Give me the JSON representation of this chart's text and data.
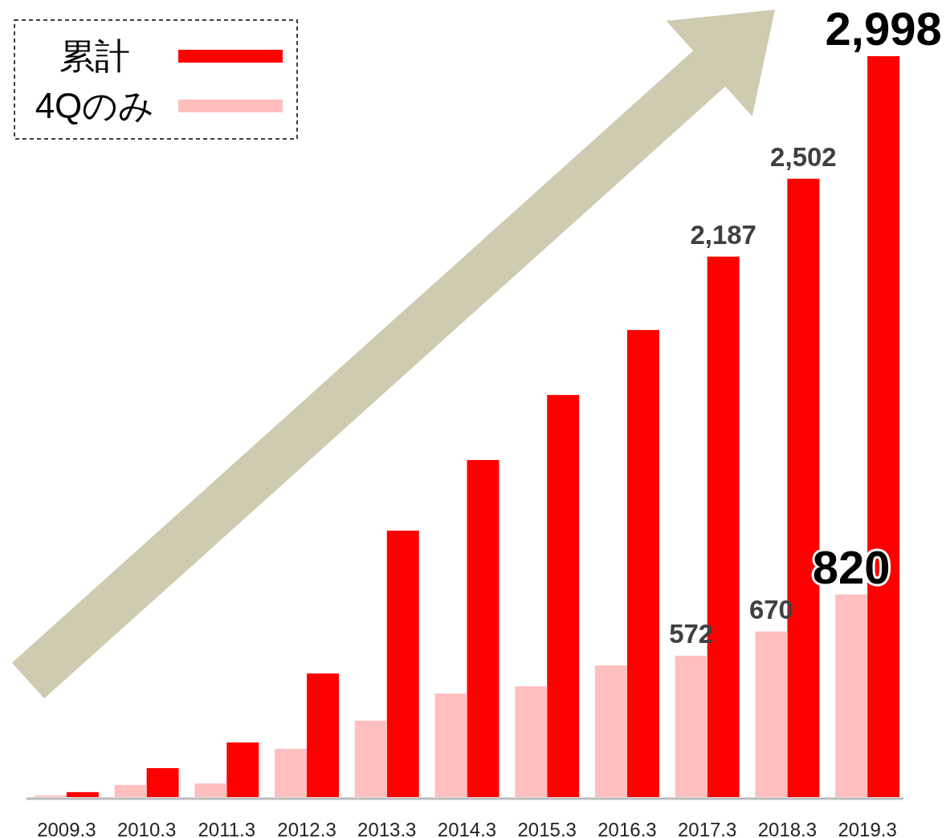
{
  "chart_data": {
    "type": "bar",
    "categories": [
      "2009.3",
      "2010.3",
      "2011.3",
      "2012.3",
      "2013.3",
      "2014.3",
      "2015.3",
      "2016.3",
      "2017.3",
      "2018.3",
      "2019.3"
    ],
    "series": [
      {
        "name": "累計",
        "color": "#ff0000",
        "values": [
          20,
          117,
          221,
          500,
          1078,
          1364,
          1627,
          1890,
          2187,
          2502,
          2998
        ],
        "value_labels": [
          null,
          null,
          null,
          null,
          null,
          null,
          null,
          null,
          "2,187",
          "2,502",
          "2,998"
        ]
      },
      {
        "name": "4Qのみ",
        "color": "#ffbfbf",
        "values": [
          6,
          49,
          55,
          195,
          309,
          419,
          448,
          533,
          572,
          670,
          820
        ],
        "value_labels": [
          null,
          null,
          null,
          null,
          null,
          null,
          null,
          null,
          "572",
          "670",
          "820"
        ]
      }
    ],
    "legend": "top left"
  }
}
